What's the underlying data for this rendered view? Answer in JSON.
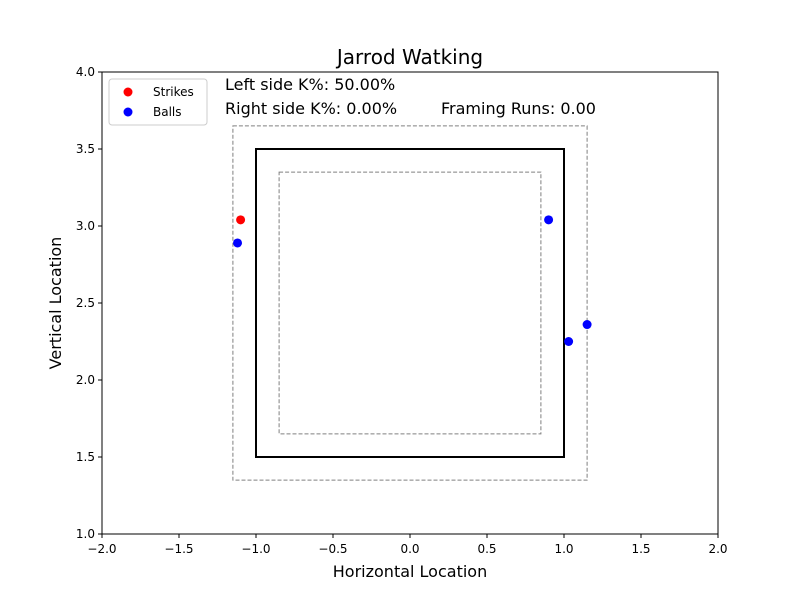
{
  "chart_data": {
    "type": "scatter",
    "title": "Jarrod Watking",
    "xlabel": "Horizontal Location",
    "ylabel": "Vertical Location",
    "xlim": [
      -2.0,
      2.0
    ],
    "ylim": [
      1.0,
      4.0
    ],
    "x_ticks": [
      "−2.0",
      "−1.5",
      "−1.0",
      "−0.5",
      "0.0",
      "0.5",
      "1.0",
      "1.5",
      "2.0"
    ],
    "y_ticks": [
      "1.0",
      "1.5",
      "2.0",
      "2.5",
      "3.0",
      "3.5",
      "4.0"
    ],
    "x_tick_values": [
      -2.0,
      -1.5,
      -1.0,
      -0.5,
      0.0,
      0.5,
      1.0,
      1.5,
      2.0
    ],
    "y_tick_values": [
      1.0,
      1.5,
      2.0,
      2.5,
      3.0,
      3.5,
      4.0
    ],
    "grid": false,
    "legend_placement": "top-left",
    "series": [
      {
        "name": "Strikes",
        "color": "#ff0000",
        "points": [
          {
            "x": -1.1,
            "y": 3.04
          }
        ]
      },
      {
        "name": "Balls",
        "color": "#0000ff",
        "points": [
          {
            "x": -1.12,
            "y": 2.89
          },
          {
            "x": 0.9,
            "y": 3.04
          },
          {
            "x": 1.03,
            "y": 2.25
          },
          {
            "x": 1.15,
            "y": 2.36
          }
        ]
      }
    ],
    "zones": {
      "strike_zone": {
        "x": [
          -1.0,
          1.0
        ],
        "y": [
          1.5,
          3.5
        ],
        "style": "solid",
        "color": "#000000"
      },
      "outer_zone": {
        "x": [
          -1.15,
          1.15
        ],
        "y": [
          1.35,
          3.65
        ],
        "style": "dashed",
        "color": "#808080"
      },
      "inner_zone": {
        "x": [
          -0.85,
          0.85
        ],
        "y": [
          1.65,
          3.35
        ],
        "style": "dashed",
        "color": "#808080"
      }
    },
    "annotations": {
      "left_k": "Left side K%: 50.00%",
      "right_k": "Right side K%: 0.00%",
      "framing": "Framing Runs: 0.00"
    }
  }
}
